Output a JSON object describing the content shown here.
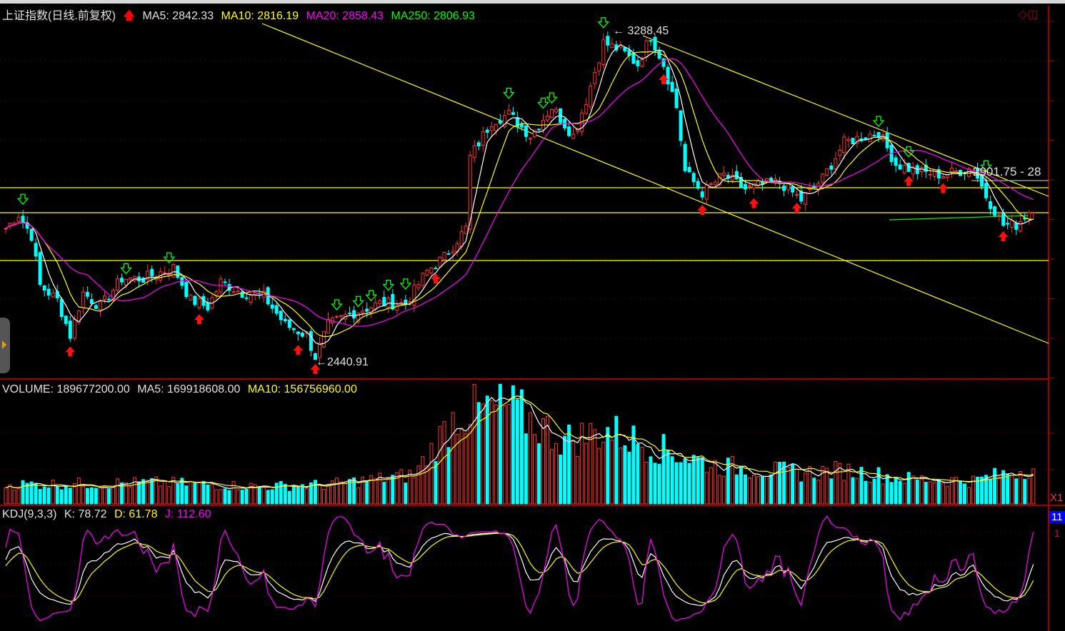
{
  "header": {
    "title": "上证指数(日线.前复权)",
    "ma5": "MA5: 2842.33",
    "ma10": "MA10: 2816.19",
    "ma20": "MA20: 2858.43",
    "ma250": "MA250: 2806.93"
  },
  "annotations": {
    "high": "3288.45",
    "low": "2440.91",
    "range": "2901.75 - 28"
  },
  "volume_header": {
    "volume": "VOLUME: 189677200.00",
    "ma5": "MA5: 169918608.00",
    "ma10": "MA10: 156756960.00"
  },
  "kdj_header": {
    "name": "KDJ(9,3,3)",
    "k": "K: 78.72",
    "d": "D: 61.78",
    "j": "J: 112.60"
  },
  "right_panel": {
    "volume_unit": "X1",
    "kdj_value_box": "11",
    "kdj_tick": "1"
  },
  "colors": {
    "up": "#ff3333",
    "down": "#00ffff",
    "ma5": "#ffffff",
    "ma10": "#ffff00",
    "ma20": "#ff00ff",
    "ma250": "#00ff00",
    "axis": "#a00000"
  },
  "chart_data": {
    "type": "candlestick",
    "title": "上证指数(日线.前复权)",
    "ylim": [
      2420,
      3310
    ],
    "grid": true,
    "bars": 240,
    "close_waypoints": [
      [
        0,
        2772.5
      ],
      [
        3,
        2809.4
      ],
      [
        6,
        2754.1
      ],
      [
        8,
        2625.2
      ],
      [
        12,
        2588.3
      ],
      [
        15,
        2496.3
      ],
      [
        18,
        2606.7
      ],
      [
        22,
        2569.9
      ],
      [
        27,
        2643.4
      ],
      [
        32,
        2643.4
      ],
      [
        39,
        2671.2
      ],
      [
        43,
        2588.3
      ],
      [
        47,
        2569.9
      ],
      [
        50,
        2634.4
      ],
      [
        55,
        2606.7
      ],
      [
        60,
        2597.5
      ],
      [
        65,
        2523.8
      ],
      [
        70,
        2496.3
      ],
      [
        72,
        2440.9
      ],
      [
        75,
        2523.8
      ],
      [
        80,
        2551.4
      ],
      [
        87,
        2579.1
      ],
      [
        93,
        2579.1
      ],
      [
        98,
        2662.0
      ],
      [
        102,
        2698.9
      ],
      [
        107,
        2772.5
      ],
      [
        108,
        2956.8
      ],
      [
        113,
        3048.9
      ],
      [
        117,
        3067.4
      ],
      [
        122,
        3012.1
      ],
      [
        127,
        3085.8
      ],
      [
        132,
        3012.1
      ],
      [
        135,
        3104.2
      ],
      [
        139,
        3251.6
      ],
      [
        143,
        3233.2
      ],
      [
        147,
        3196.3
      ],
      [
        150,
        3270.0
      ],
      [
        153,
        3196.3
      ],
      [
        156,
        3085.8
      ],
      [
        158,
        2919.9
      ],
      [
        162,
        2864.7
      ],
      [
        167,
        2910.7
      ],
      [
        172,
        2873.9
      ],
      [
        175,
        2883.1
      ],
      [
        180,
        2892.3
      ],
      [
        185,
        2846.3
      ],
      [
        190,
        2901.5
      ],
      [
        195,
        2993.7
      ],
      [
        200,
        3012.1
      ],
      [
        203,
        3021.3
      ],
      [
        207,
        2938.4
      ],
      [
        212,
        2919.9
      ],
      [
        218,
        2910.7
      ],
      [
        225,
        2929.2
      ],
      [
        228,
        2856.4
      ],
      [
        232,
        2781.8
      ],
      [
        235,
        2781.8
      ],
      [
        239,
        2827.8
      ]
    ],
    "horizontal_lines": [
      2877.6,
      2813.1,
      2689.6
    ],
    "volume_millions_waypoints": [
      [
        0,
        100
      ],
      [
        35,
        110
      ],
      [
        60,
        90
      ],
      [
        75,
        100
      ],
      [
        95,
        150
      ],
      [
        105,
        470
      ],
      [
        117,
        500
      ],
      [
        130,
        330
      ],
      [
        140,
        380
      ],
      [
        150,
        300
      ],
      [
        165,
        200
      ],
      [
        185,
        160
      ],
      [
        195,
        175
      ],
      [
        210,
        130
      ],
      [
        225,
        120
      ],
      [
        239,
        190
      ]
    ],
    "series": [
      {
        "name": "MA5",
        "period": 5
      },
      {
        "name": "MA10",
        "period": 10
      },
      {
        "name": "MA20",
        "period": 20
      },
      {
        "name": "MA250",
        "value": 2806.93
      }
    ]
  }
}
